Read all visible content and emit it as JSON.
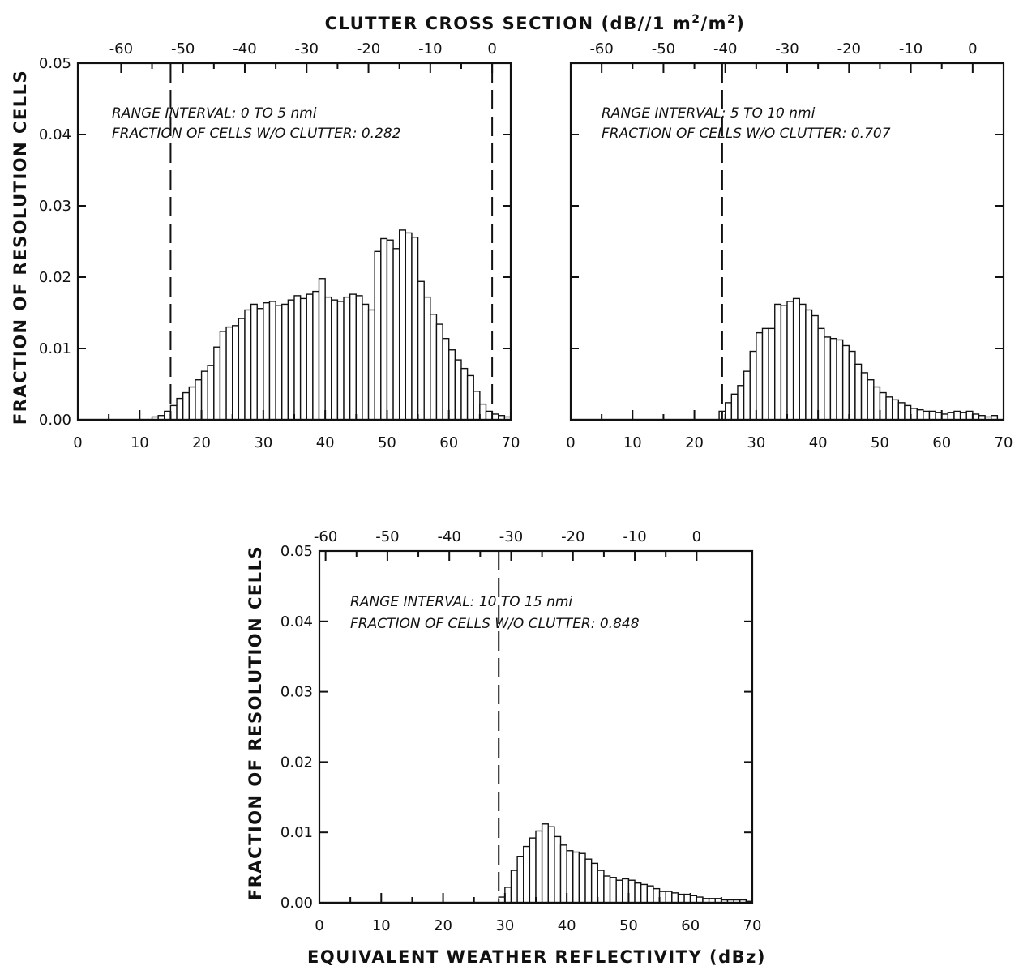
{
  "figure": {
    "top_axis_title_main": "CLUTTER CROSS SECTION (dB//1 m",
    "top_axis_title_sup1": "2",
    "top_axis_title_mid": "/m",
    "top_axis_title_sup2": "2",
    "top_axis_title_end": ")",
    "bottom_axis_title": "EQUIVALENT WEATHER REFLECTIVITY (dBz)",
    "y_axis_title": "FRACTION OF RESOLUTION CELLS"
  },
  "chart_data": [
    {
      "type": "bar",
      "id": "panel1",
      "xlabel": "",
      "ylabel": "FRACTION OF RESOLUTION CELLS",
      "xlim": [
        0,
        70
      ],
      "ylim": [
        0,
        0.05
      ],
      "x_ticks": [
        "0",
        "10",
        "20",
        "30",
        "40",
        "50",
        "60",
        "70"
      ],
      "y_ticks": [
        "0.00",
        "0.01",
        "0.02",
        "0.03",
        "0.04",
        "0.05"
      ],
      "top_ticks": [
        {
          "x": 7,
          "label": "-60"
        },
        {
          "x": 17,
          "label": "-50"
        },
        {
          "x": 27,
          "label": "-40"
        },
        {
          "x": 37,
          "label": "-30"
        },
        {
          "x": 47,
          "label": "-20"
        },
        {
          "x": 57,
          "label": "-10"
        },
        {
          "x": 67,
          "label": "0"
        }
      ],
      "dashed_lines": [
        15,
        67
      ],
      "annotation": [
        "RANGE INTERVAL: 0 TO 5 nmi",
        "FRACTION OF CELLS W/O CLUTTER: 0.282"
      ],
      "bin_start": 12,
      "bin_width": 1,
      "values": [
        0.0004,
        0.0006,
        0.0012,
        0.002,
        0.003,
        0.0038,
        0.0046,
        0.0056,
        0.0068,
        0.0076,
        0.0102,
        0.0124,
        0.013,
        0.0132,
        0.0142,
        0.0154,
        0.0162,
        0.0156,
        0.0164,
        0.0166,
        0.016,
        0.0162,
        0.0168,
        0.0174,
        0.017,
        0.0176,
        0.018,
        0.0198,
        0.0172,
        0.0168,
        0.0166,
        0.0172,
        0.0176,
        0.0174,
        0.0162,
        0.0154,
        0.0236,
        0.0254,
        0.0252,
        0.024,
        0.0266,
        0.0262,
        0.0256,
        0.0194,
        0.0172,
        0.0148,
        0.0134,
        0.0114,
        0.0098,
        0.0084,
        0.0072,
        0.0062,
        0.004,
        0.0022,
        0.0012,
        0.0008,
        0.0006,
        0.0004
      ]
    },
    {
      "type": "bar",
      "id": "panel2",
      "xlabel": "",
      "ylabel": "",
      "xlim": [
        0,
        70
      ],
      "ylim": [
        0,
        0.05
      ],
      "x_ticks": [
        "0",
        "10",
        "20",
        "30",
        "40",
        "50",
        "60",
        "70"
      ],
      "y_ticks": [],
      "top_ticks": [
        {
          "x": 5,
          "label": "-60"
        },
        {
          "x": 15,
          "label": "-50"
        },
        {
          "x": 25,
          "label": "-40"
        },
        {
          "x": 35,
          "label": "-30"
        },
        {
          "x": 45,
          "label": "-20"
        },
        {
          "x": 55,
          "label": "-10"
        },
        {
          "x": 65,
          "label": "0"
        }
      ],
      "dashed_lines": [
        24.5
      ],
      "annotation": [
        "RANGE INTERVAL: 5 TO 10 nmi",
        "FRACTION OF CELLS W/O CLUTTER: 0.707"
      ],
      "bin_start": 24,
      "bin_width": 1,
      "values": [
        0.0012,
        0.0024,
        0.0036,
        0.0048,
        0.0068,
        0.0096,
        0.0122,
        0.0128,
        0.0128,
        0.0162,
        0.016,
        0.0166,
        0.017,
        0.0162,
        0.0154,
        0.0146,
        0.0128,
        0.0116,
        0.0114,
        0.0112,
        0.0104,
        0.0096,
        0.0078,
        0.0066,
        0.0056,
        0.0046,
        0.0038,
        0.0032,
        0.0028,
        0.0024,
        0.002,
        0.0016,
        0.0014,
        0.0012,
        0.0012,
        0.001,
        0.0008,
        0.001,
        0.0012,
        0.001,
        0.0012,
        0.0008,
        0.0006,
        0.0004,
        0.0006
      ]
    },
    {
      "type": "bar",
      "id": "panel3",
      "xlabel": "EQUIVALENT WEATHER REFLECTIVITY (dBz)",
      "ylabel": "FRACTION OF RESOLUTION CELLS",
      "xlim": [
        0,
        70
      ],
      "ylim": [
        0,
        0.05
      ],
      "x_ticks": [
        "0",
        "10",
        "20",
        "30",
        "40",
        "50",
        "60",
        "70"
      ],
      "y_ticks": [
        "0.00",
        "0.01",
        "0.02",
        "0.03",
        "0.04",
        "0.05"
      ],
      "top_ticks": [
        {
          "x": 1,
          "label": "-60"
        },
        {
          "x": 11,
          "label": "-50"
        },
        {
          "x": 21,
          "label": "-40"
        },
        {
          "x": 31,
          "label": "-30"
        },
        {
          "x": 41,
          "label": "-20"
        },
        {
          "x": 51,
          "label": "-10"
        },
        {
          "x": 61,
          "label": "0"
        }
      ],
      "dashed_lines": [
        29
      ],
      "annotation": [
        "RANGE INTERVAL: 10 TO 15 nmi",
        "FRACTION OF CELLS W/O CLUTTER: 0.848"
      ],
      "bin_start": 29,
      "bin_width": 1,
      "values": [
        0.0008,
        0.0022,
        0.0046,
        0.0066,
        0.008,
        0.0092,
        0.0102,
        0.0112,
        0.0108,
        0.0094,
        0.0082,
        0.0074,
        0.0072,
        0.007,
        0.0062,
        0.0056,
        0.0046,
        0.0038,
        0.0036,
        0.0032,
        0.0034,
        0.0032,
        0.0028,
        0.0026,
        0.0024,
        0.002,
        0.0016,
        0.0016,
        0.0014,
        0.0012,
        0.0012,
        0.001,
        0.0008,
        0.0006,
        0.0006,
        0.0006,
        0.0004,
        0.0004,
        0.0004,
        0.0004,
        0.0002
      ]
    }
  ]
}
